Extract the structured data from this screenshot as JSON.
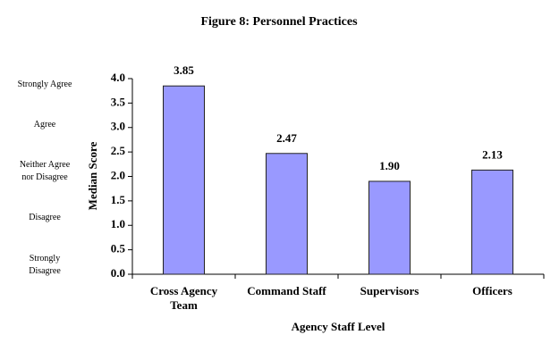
{
  "chart_data": {
    "type": "bar",
    "title": "Figure 8: Personnel Practices",
    "x_label": "Agency Staff Level",
    "y_label": "Median Score",
    "categories": [
      "Cross Agency Team",
      "Command Staff",
      "Supervisors",
      "Officers"
    ],
    "values": [
      3.85,
      2.47,
      1.9,
      2.13
    ],
    "value_labels": [
      "3.85",
      "2.47",
      "1.90",
      "2.13"
    ],
    "color": "#9999ff",
    "ylim": [
      0,
      4
    ],
    "yticks": [
      {
        "value": 0,
        "label": "0.0"
      },
      {
        "value": 0.5,
        "label": "0.5"
      },
      {
        "value": 1,
        "label": "1.0"
      },
      {
        "value": 1.5,
        "label": "1.5"
      },
      {
        "value": 2,
        "label": "2.0"
      },
      {
        "value": 2.5,
        "label": "2.5"
      },
      {
        "value": 3,
        "label": "3.0"
      },
      {
        "value": 3.5,
        "label": "3.5"
      },
      {
        "value": 4,
        "label": "4.0"
      }
    ],
    "annotations": [
      "Strongly Agree",
      "Agree",
      "Neither Agree nor Disagree",
      "Disagree",
      "Strongly Disagree"
    ],
    "grid": false
  }
}
